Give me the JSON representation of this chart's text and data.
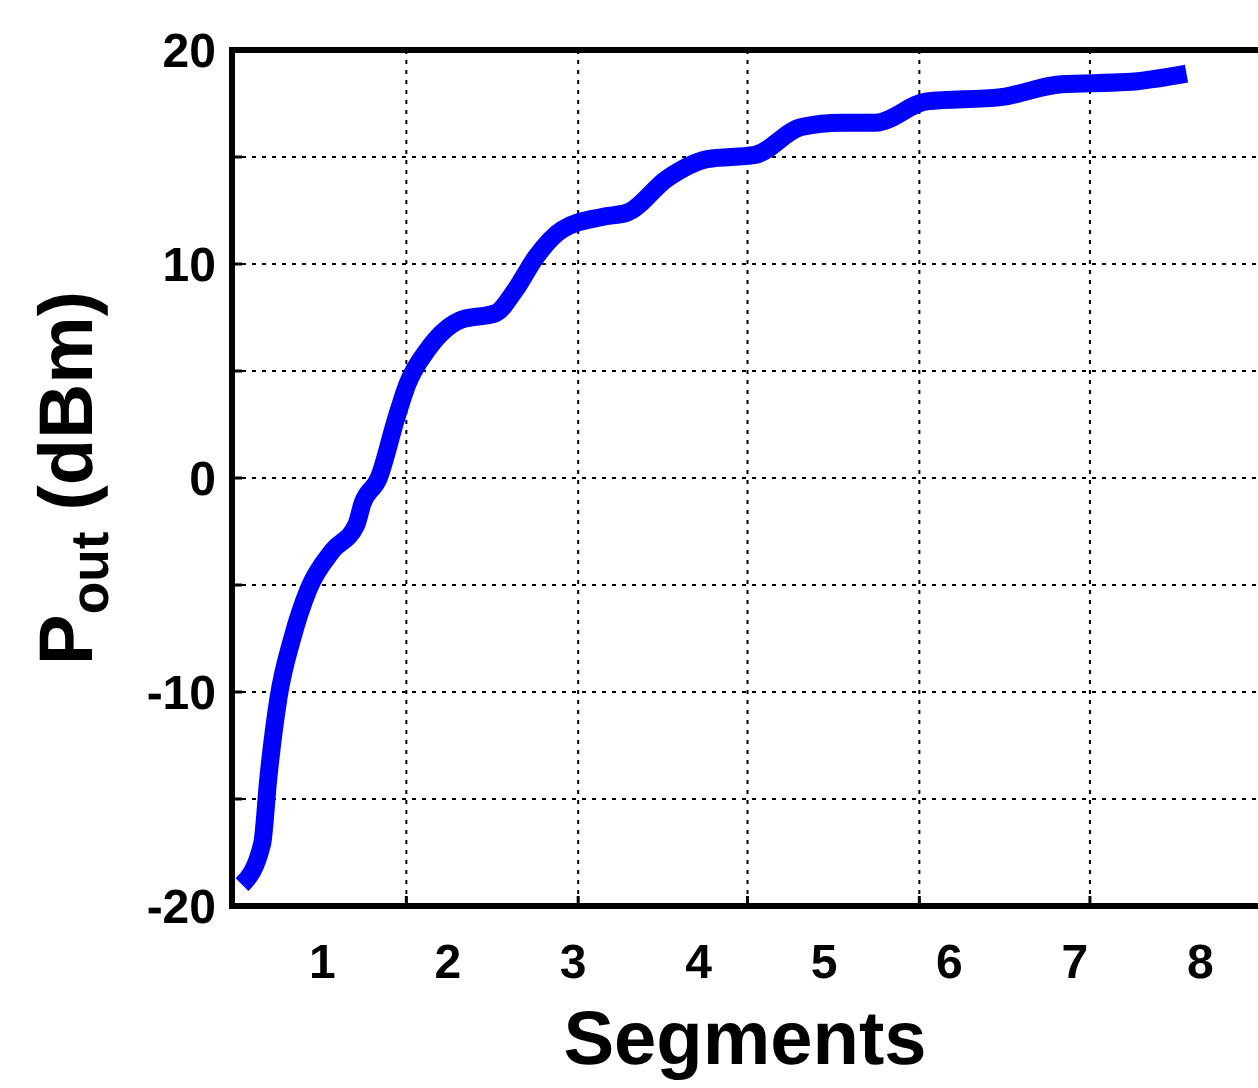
{
  "chart_data": {
    "type": "line",
    "xlabel": "Segments",
    "ylabel": "P$_{out}$ (dBm)",
    "xlim": [
      0.28,
      8.46
    ],
    "xticks": [
      1,
      2,
      3,
      4,
      5,
      6,
      7,
      8,
      {
        "value": 1.67,
        "label": null
      },
      {
        "value": 3.04,
        "label": null
      },
      {
        "value": 4.39,
        "label": null
      },
      {
        "value": 5.76,
        "label": null
      },
      {
        "value": 7.12,
        "label": null
      }
    ],
    "ylim": [
      -20,
      20
    ],
    "yticks": [
      -20,
      {
        "value": -15,
        "label": null
      },
      -10,
      {
        "value": -5,
        "label": null
      },
      0,
      {
        "value": 5,
        "label": null
      },
      10,
      {
        "value": 15,
        "label": null
      },
      20
    ],
    "grid": true,
    "line_style": "solid",
    "marker": "none",
    "series": [
      {
        "color": "#0000ff",
        "x": [
          0.36,
          0.52,
          0.57,
          0.65,
          0.76,
          0.89,
          1.08,
          1.27,
          1.32,
          1.45,
          1.59,
          1.68,
          1.84,
          2.11,
          2.38,
          2.54,
          2.7,
          2.91,
          3.23,
          3.43,
          3.75,
          4.07,
          4.45,
          4.82,
          5.14,
          5.41,
          5.82,
          6.41,
          6.89,
          7.41,
          7.89
        ],
        "values": [
          -19.0,
          -17.1,
          -14.0,
          -10.3,
          -7.5,
          -5.2,
          -3.4,
          -2.2,
          -1.2,
          0,
          2.8,
          4.4,
          6.0,
          7.4,
          7.7,
          8.8,
          10.3,
          11.6,
          12.2,
          12.4,
          14.0,
          14.9,
          15.1,
          16.4,
          16.6,
          16.6,
          17.6,
          17.8,
          18.4,
          18.5,
          18.9
        ]
      }
    ]
  }
}
